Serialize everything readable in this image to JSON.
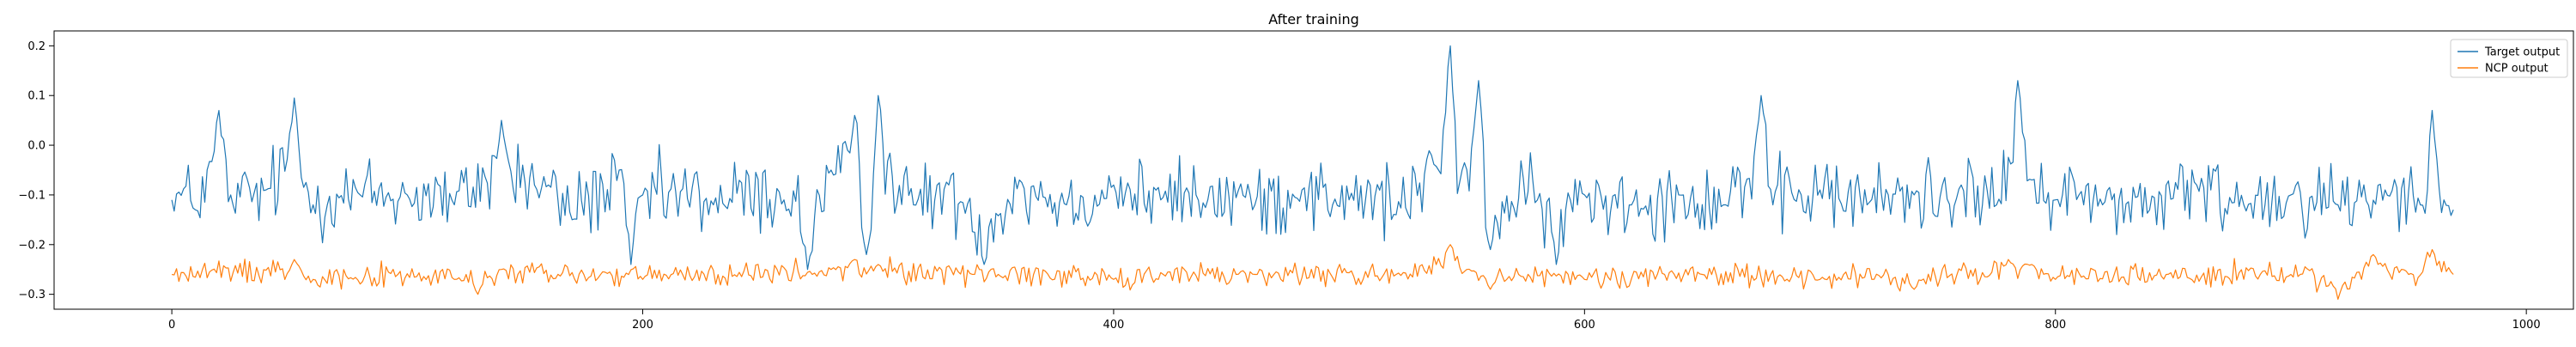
{
  "chart_data": {
    "type": "line",
    "title": "After training",
    "xlabel": "",
    "ylabel": "",
    "xlim": [
      -50,
      1020
    ],
    "ylim": [
      -0.33,
      0.23
    ],
    "xticks": [
      0,
      200,
      400,
      600,
      800,
      1000
    ],
    "yticks": [
      -0.3,
      -0.2,
      -0.1,
      0.0,
      0.1,
      0.2
    ],
    "xtick_labels": [
      "0",
      "200",
      "400",
      "600",
      "800",
      "1000"
    ],
    "ytick_labels": [
      "−0.3",
      "−0.2",
      "−0.1",
      "0.0",
      "0.1",
      "0.2"
    ],
    "grid": false,
    "legend_position": "upper right",
    "n_points": 970,
    "series": [
      {
        "name": "Target output",
        "color": "#1f77b4",
        "anchors": [
          [
            0,
            -0.11
          ],
          [
            10,
            -0.13
          ],
          [
            20,
            0.07
          ],
          [
            26,
            -0.12
          ],
          [
            40,
            -0.09
          ],
          [
            52,
            0.095
          ],
          [
            60,
            -0.12
          ],
          [
            80,
            -0.1
          ],
          [
            100,
            -0.1
          ],
          [
            120,
            -0.12
          ],
          [
            140,
            0.05
          ],
          [
            160,
            -0.08
          ],
          [
            170,
            -0.15
          ],
          [
            190,
            -0.05
          ],
          [
            195,
            -0.24
          ],
          [
            200,
            -0.1
          ],
          [
            230,
            -0.12
          ],
          [
            260,
            -0.11
          ],
          [
            270,
            -0.25
          ],
          [
            280,
            -0.05
          ],
          [
            290,
            0.06
          ],
          [
            295,
            -0.22
          ],
          [
            300,
            0.1
          ],
          [
            315,
            -0.12
          ],
          [
            330,
            -0.08
          ],
          [
            345,
            -0.24
          ],
          [
            360,
            -0.07
          ],
          [
            380,
            -0.12
          ],
          [
            400,
            -0.08
          ],
          [
            420,
            -0.11
          ],
          [
            440,
            -0.11
          ],
          [
            460,
            -0.12
          ],
          [
            480,
            -0.09
          ],
          [
            500,
            -0.11
          ],
          [
            520,
            -0.14
          ],
          [
            535,
            -0.02
          ],
          [
            543,
            0.2
          ],
          [
            548,
            -0.05
          ],
          [
            555,
            0.13
          ],
          [
            560,
            -0.21
          ],
          [
            580,
            -0.11
          ],
          [
            588,
            -0.24
          ],
          [
            600,
            -0.1
          ],
          [
            620,
            -0.12
          ],
          [
            640,
            -0.1
          ],
          [
            660,
            -0.12
          ],
          [
            675,
            0.1
          ],
          [
            680,
            -0.12
          ],
          [
            700,
            -0.09
          ],
          [
            720,
            -0.12
          ],
          [
            740,
            -0.1
          ],
          [
            760,
            -0.08
          ],
          [
            775,
            -0.12
          ],
          [
            784,
            0.13
          ],
          [
            790,
            -0.07
          ],
          [
            800,
            -0.11
          ],
          [
            810,
            -0.1
          ],
          [
            820,
            -0.12
          ],
          [
            840,
            -0.13
          ],
          [
            860,
            -0.08
          ],
          [
            880,
            -0.12
          ],
          [
            900,
            -0.1
          ],
          [
            920,
            -0.12
          ],
          [
            940,
            -0.09
          ],
          [
            955,
            -0.12
          ],
          [
            960,
            0.07
          ],
          [
            965,
            -0.11
          ],
          [
            969,
            -0.13
          ]
        ],
        "noise": 0.04
      },
      {
        "name": "NCP output",
        "color": "#ff7f0e",
        "anchors": [
          [
            0,
            -0.26
          ],
          [
            52,
            -0.23
          ],
          [
            60,
            -0.27
          ],
          [
            120,
            -0.27
          ],
          [
            130,
            -0.3
          ],
          [
            140,
            -0.25
          ],
          [
            200,
            -0.27
          ],
          [
            280,
            -0.25
          ],
          [
            290,
            -0.23
          ],
          [
            300,
            -0.24
          ],
          [
            400,
            -0.27
          ],
          [
            460,
            -0.26
          ],
          [
            520,
            -0.26
          ],
          [
            543,
            -0.2
          ],
          [
            550,
            -0.25
          ],
          [
            560,
            -0.29
          ],
          [
            600,
            -0.27
          ],
          [
            650,
            -0.26
          ],
          [
            700,
            -0.27
          ],
          [
            740,
            -0.29
          ],
          [
            780,
            -0.23
          ],
          [
            790,
            -0.24
          ],
          [
            800,
            -0.27
          ],
          [
            900,
            -0.26
          ],
          [
            920,
            -0.31
          ],
          [
            935,
            -0.22
          ],
          [
            950,
            -0.26
          ],
          [
            960,
            -0.21
          ],
          [
            969,
            -0.26
          ]
        ],
        "noise": 0.012
      }
    ]
  }
}
